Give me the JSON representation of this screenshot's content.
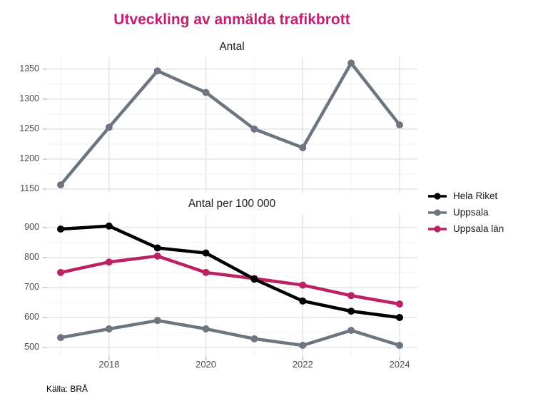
{
  "title": "Utveckling av anmälda trafikbrott",
  "title_color": "#c41e74",
  "source": "Källa: BRÅ",
  "colors": {
    "hela_riket": "#000000",
    "uppsala": "#6d7680",
    "uppsala_lan": "#bb2266",
    "grid_major": "#e2e2e2",
    "grid_minor": "#f0f0f0",
    "tick_mark": "#b0b0b0",
    "tick_text": "#4d4d4d"
  },
  "legend": {
    "items": [
      {
        "label": "Hela Riket",
        "color": "#000000"
      },
      {
        "label": "Uppsala",
        "color": "#6d7680"
      },
      {
        "label": "Uppsala län",
        "color": "#bb2266"
      }
    ]
  },
  "chart_data": [
    {
      "type": "line",
      "title": "Antal",
      "x": [
        2017,
        2018,
        2019,
        2020,
        2021,
        2022,
        2023,
        2024
      ],
      "series": [
        {
          "name": "Uppsala",
          "color": "#6d7680",
          "values": [
            1157,
            1253,
            1347,
            1311,
            1250,
            1219,
            1360,
            1257
          ]
        }
      ],
      "xticks": [
        2018,
        2020,
        2022,
        2024
      ],
      "yticks": [
        1150,
        1200,
        1250,
        1300,
        1350
      ],
      "yticks_minor": [
        1175,
        1225,
        1275,
        1325
      ],
      "ylim": [
        1144,
        1370
      ],
      "grid": true,
      "legend_position": "none"
    },
    {
      "type": "line",
      "title": "Antal per 100 000",
      "x": [
        2017,
        2018,
        2019,
        2020,
        2021,
        2022,
        2023,
        2024
      ],
      "series": [
        {
          "name": "Hela Riket",
          "color": "#000000",
          "values": [
            895,
            905,
            832,
            815,
            728,
            655,
            621,
            600
          ]
        },
        {
          "name": "Uppsala",
          "color": "#6d7680",
          "values": [
            533,
            562,
            590,
            562,
            529,
            507,
            557,
            507
          ]
        },
        {
          "name": "Uppsala län",
          "color": "#bb2266",
          "values": [
            750,
            785,
            805,
            750,
            730,
            708,
            673,
            645
          ]
        }
      ],
      "xticks": [
        2018,
        2020,
        2022,
        2024
      ],
      "yticks": [
        500,
        600,
        700,
        800,
        900
      ],
      "yticks_minor": [
        550,
        650,
        750,
        850
      ],
      "ylim": [
        469,
        945
      ],
      "grid": true,
      "legend_position": "right"
    }
  ]
}
